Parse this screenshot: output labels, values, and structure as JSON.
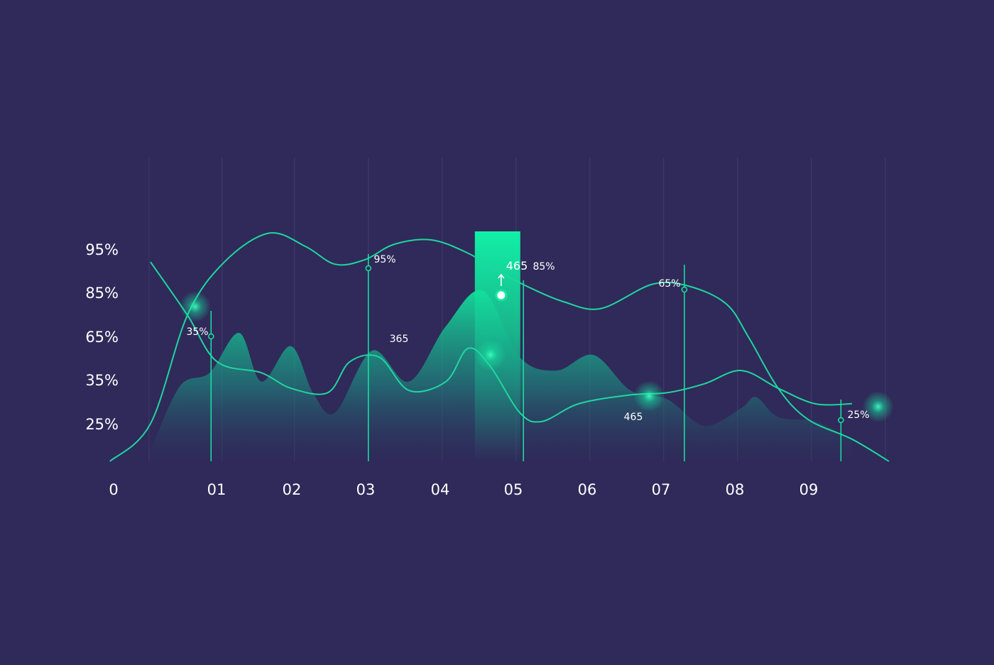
{
  "chart_data": {
    "type": "area",
    "title": "",
    "xlabel": "",
    "ylabel": "",
    "x_tick_labels": [
      "0",
      "01",
      "02",
      "03",
      "04",
      "05",
      "06",
      "07",
      "08",
      "09"
    ],
    "y_tick_labels": [
      "95%",
      "85%",
      "65%",
      "35%",
      "25%"
    ],
    "ylim": [
      0,
      100
    ],
    "grid": "vertical",
    "legend": "none",
    "highlight": {
      "category": "05",
      "value_label": "465"
    },
    "series": [
      {
        "type": "area",
        "x": [
          0.5,
          0.9,
          1.3,
          1.7,
          2.0,
          2.4,
          2.7,
          3.0,
          3.5,
          4.0,
          4.5,
          5.0,
          5.5,
          6.0,
          6.5,
          7.0,
          7.5,
          8.0,
          8.5,
          8.7,
          9.0,
          9.5,
          10.0
        ],
        "y": [
          5,
          34,
          40,
          58,
          36,
          52,
          31,
          22,
          50,
          36,
          61,
          77,
          47,
          41,
          48,
          32,
          28,
          16,
          24,
          29,
          20,
          18,
          10
        ]
      },
      {
        "type": "line",
        "x": [
          0.5,
          1.0,
          1.4,
          2.0,
          2.4,
          2.9,
          3.2,
          3.6,
          4.0,
          4.5,
          4.8,
          5.1,
          5.5,
          5.8,
          6.3,
          7.0,
          7.5,
          8.0,
          8.5,
          9.0,
          9.5,
          10.0
        ],
        "y": [
          90,
          66,
          45,
          40,
          33,
          31,
          45,
          47,
          32,
          36,
          51,
          43,
          22,
          18,
          26,
          30,
          31,
          35,
          41,
          33,
          26,
          26
        ]
      },
      {
        "type": "line",
        "x": [
          -0.05,
          0.5,
          1.0,
          1.5,
          2.1,
          2.6,
          3.0,
          3.4,
          3.8,
          4.3,
          4.8,
          5.2,
          5.6,
          6.1,
          6.6,
          7.3,
          7.8,
          8.3,
          8.6,
          9.0,
          9.4,
          10.0,
          10.5
        ],
        "y": [
          0,
          17,
          66,
          90,
          103,
          97,
          89,
          91,
          98,
          100,
          94,
          86,
          79,
          72,
          69,
          80,
          79,
          71,
          56,
          33,
          19,
          10,
          0
        ]
      }
    ],
    "annotations": [
      {
        "text": "35%",
        "x": 1.35,
        "y": 66
      },
      {
        "text": "95%",
        "x": 3.0,
        "y": 89
      },
      {
        "text": "365",
        "x": 3.45,
        "y": 56
      },
      {
        "text": "465",
        "x": 5.05,
        "y": 92
      },
      {
        "text": "85%",
        "x": 5.15,
        "y": 88
      },
      {
        "text": "465",
        "x": 6.65,
        "y": 22
      },
      {
        "text": "65%",
        "x": 7.3,
        "y": 80
      },
      {
        "text": "25%",
        "x": 9.4,
        "y": 19
      }
    ]
  },
  "colors": {
    "background": "#2f2a59",
    "accent": "#17e6a2",
    "line": "#1fd6a0",
    "text": "#ffffff"
  }
}
